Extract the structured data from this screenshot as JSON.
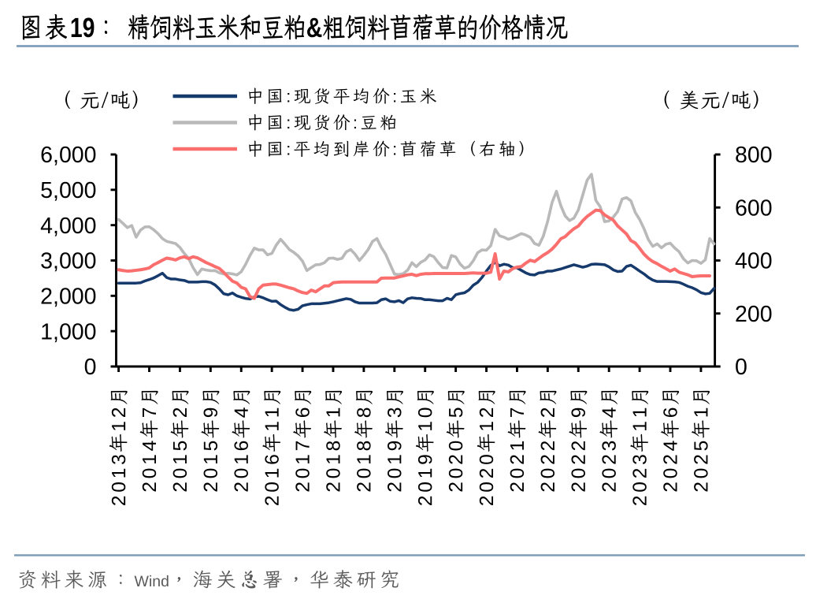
{
  "page": {
    "background": "#ffffff"
  },
  "header": {
    "figure_label": "图表19：",
    "title": "精饲料玉米和豆粕&粗饲料苜蓿草的价格情况",
    "divider_color": "#7f9db9"
  },
  "legend": {
    "items": [
      {
        "label": "中国:现货平均价:玉米",
        "color": "#173a6d"
      },
      {
        "label": "中国:现货价:豆粕",
        "color": "#b9b9b9"
      },
      {
        "label": "中国:平均到岸价:苜蓿草（右轴）",
        "color": "#fa6e6e"
      }
    ]
  },
  "chart_data": {
    "type": "line",
    "title": "精饲料玉米和豆粕&粗饲料苜蓿草的价格情况",
    "x_start_month": "2013-12",
    "x_end_month": "2025-04",
    "x_tick_every_months": 7,
    "x_tick_labels": [
      "2013年12月",
      "2014年7月",
      "2015年2月",
      "2015年9月",
      "2016年4月",
      "2016年11月",
      "2017年6月",
      "2018年1月",
      "2018年8月",
      "2019年3月",
      "2019年10月",
      "2020年5月",
      "2020年12月",
      "2021年7月",
      "2022年2月",
      "2022年9月",
      "2023年4月",
      "2023年11月",
      "2024年6月",
      "2025年1月"
    ],
    "left_axis": {
      "unit_label": "（元/吨）",
      "min": 0,
      "max": 6000,
      "tick_step": 1000,
      "tick_labels": [
        "0",
        "1,000",
        "2,000",
        "3,000",
        "4,000",
        "5,000",
        "6,000"
      ]
    },
    "right_axis": {
      "unit_label": "（美元/吨）",
      "min": 0,
      "max": 800,
      "tick_step": 200,
      "tick_labels": [
        "0",
        "200",
        "400",
        "600",
        "800"
      ]
    },
    "grid": false,
    "legend_position": "top-left",
    "series": [
      {
        "name": "中国:现货平均价:玉米",
        "axis": "left",
        "color": "#173a6d",
        "width": 3.5,
        "values": [
          2360,
          2360,
          2360,
          2360,
          2360,
          2370,
          2420,
          2460,
          2505,
          2570,
          2640,
          2515,
          2475,
          2475,
          2450,
          2435,
          2390,
          2390,
          2390,
          2400,
          2400,
          2380,
          2310,
          2195,
          2060,
          2030,
          2080,
          2000,
          1960,
          1925,
          1910,
          1970,
          1985,
          1945,
          1890,
          1845,
          1850,
          1750,
          1675,
          1610,
          1590,
          1620,
          1720,
          1750,
          1775,
          1775,
          1775,
          1790,
          1805,
          1830,
          1860,
          1890,
          1920,
          1900,
          1830,
          1795,
          1795,
          1795,
          1795,
          1805,
          1890,
          1915,
          1845,
          1830,
          1865,
          1805,
          1915,
          1945,
          1930,
          1925,
          1890,
          1890,
          1875,
          1860,
          1860,
          1930,
          1890,
          2030,
          2065,
          2085,
          2165,
          2300,
          2380,
          2520,
          2700,
          2860,
          2945,
          2850,
          2895,
          2870,
          2800,
          2790,
          2720,
          2650,
          2600,
          2590,
          2650,
          2660,
          2700,
          2700,
          2730,
          2760,
          2800,
          2840,
          2880,
          2845,
          2810,
          2840,
          2890,
          2900,
          2890,
          2880,
          2820,
          2733,
          2688,
          2700,
          2832,
          2867,
          2787,
          2700,
          2620,
          2520,
          2445,
          2405,
          2405,
          2405,
          2400,
          2395,
          2380,
          2330,
          2270,
          2230,
          2170,
          2090,
          2055,
          2070,
          2210
        ]
      },
      {
        "name": "中国:现货价:豆粕",
        "axis": "left",
        "color": "#b9b9b9",
        "width": 3.6,
        "values": [
          4160,
          4050,
          3930,
          3990,
          3660,
          3860,
          3950,
          3955,
          3870,
          3760,
          3620,
          3540,
          3510,
          3480,
          3370,
          3200,
          3060,
          2800,
          2600,
          2760,
          2730,
          2710,
          2715,
          2650,
          2620,
          2640,
          2620,
          2590,
          2680,
          2890,
          3140,
          3350,
          3300,
          3300,
          3160,
          3200,
          3435,
          3600,
          3460,
          3310,
          3230,
          3130,
          2980,
          2715,
          2800,
          2877,
          2888,
          2938,
          3060,
          3070,
          3030,
          3060,
          3245,
          3310,
          3180,
          3000,
          3145,
          3310,
          3540,
          3620,
          3370,
          3175,
          2895,
          2615,
          2600,
          2625,
          2726,
          2938,
          2826,
          2949,
          3016,
          3161,
          3105,
          2940,
          2800,
          2790,
          3140,
          3100,
          2900,
          2780,
          2830,
          2990,
          3220,
          3300,
          3290,
          3420,
          3880,
          3700,
          3660,
          3600,
          3640,
          3700,
          3760,
          3720,
          3655,
          3480,
          3430,
          3690,
          4110,
          4640,
          4960,
          4550,
          4260,
          4130,
          4200,
          4430,
          4850,
          5270,
          5440,
          4700,
          4520,
          4100,
          4120,
          4230,
          4390,
          4740,
          4780,
          4690,
          4360,
          4160,
          3900,
          3590,
          3400,
          3470,
          3360,
          3460,
          3490,
          3355,
          3250,
          3050,
          2930,
          3000,
          2990,
          2920,
          3020,
          3620,
          3470
        ]
      },
      {
        "name": "中国:平均到岸价:苜蓿草（右轴）",
        "axis": "right",
        "color": "#fa6e6e",
        "width": 4.0,
        "values": [
          365,
          362,
          360,
          361,
          363,
          365,
          368,
          372,
          384,
          392,
          401,
          409,
          406,
          402,
          410,
          414,
          407,
          414,
          410,
          401,
          392,
          385,
          377,
          370,
          355,
          338,
          322,
          315,
          299,
          293,
          264,
          257,
          293,
          307,
          309,
          311,
          311,
          307,
          302,
          297,
          293,
          285,
          279,
          276,
          288,
          282,
          293,
          304,
          304,
          316,
          318,
          319,
          319,
          319,
          319,
          319,
          319,
          319,
          319,
          319,
          333,
          334,
          334,
          334,
          338,
          342,
          346,
          348,
          343,
          348,
          350,
          350,
          351,
          351,
          351,
          351,
          351,
          351,
          351,
          351,
          352,
          353,
          352,
          352,
          352,
          356,
          425,
          330,
          360,
          357,
          369,
          375,
          377,
          390,
          401,
          396,
          408,
          420,
          430,
          443,
          461,
          482,
          490,
          506,
          520,
          530,
          550,
          566,
          578,
          590,
          588,
          572,
          562,
          552,
          530,
          515,
          500,
          475,
          466,
          446,
          424,
          408,
          396,
          388,
          378,
          369,
          360,
          368,
          356,
          351,
          346,
          339,
          341,
          342,
          342,
          342,
          null
        ]
      }
    ]
  },
  "footer": {
    "source": "资料来源：Wind，海关总署，华泰研究",
    "divider_color": "#7f9db9"
  }
}
